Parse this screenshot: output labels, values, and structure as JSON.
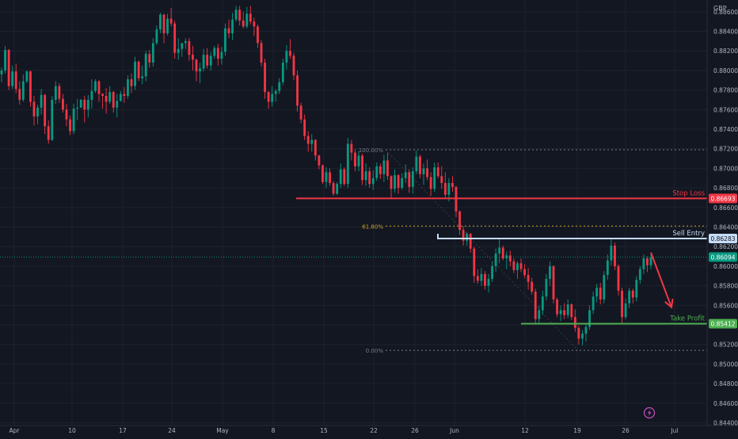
{
  "chart_data": {
    "type": "candlestick",
    "currency": "GBP",
    "price_range": [
      0.8438,
      0.8872
    ],
    "y_ticks": [
      "0.88600",
      "0.88400",
      "0.88200",
      "0.88000",
      "0.87800",
      "0.87600",
      "0.87400",
      "0.87200",
      "0.87000",
      "0.86800",
      "0.86600",
      "0.86400",
      "0.86200",
      "0.86000",
      "0.85800",
      "0.85600",
      "0.85400",
      "0.85200",
      "0.85000",
      "0.84800",
      "0.84600",
      "0.84400"
    ],
    "x_ticks": [
      "Apr",
      "10",
      "17",
      "24",
      "May",
      "8",
      "15",
      "22",
      "26",
      "Jun",
      "12",
      "19",
      "26",
      "Jul"
    ],
    "fib": {
      "levels": [
        {
          "label": "100.00%",
          "price": 0.8719
        },
        {
          "label": "61.80%",
          "price": 0.8641
        },
        {
          "label": "0.00%",
          "price": 0.8514
        }
      ],
      "label_color": "#c9a227",
      "gray_label_color": "#787b86"
    },
    "annotations": [
      {
        "label": "Stop Loss",
        "price": 0.86693,
        "price_label": "0.86693",
        "color": "#f23645",
        "badge_text_color": "#ffffff"
      },
      {
        "label": "Sell Entry",
        "price": 0.86283,
        "price_label": "0.86283",
        "color": "#c6dcf6",
        "badge_text_color": "#131722"
      },
      {
        "label": "Take Profit",
        "price": 0.85412,
        "price_label": "0.85412",
        "color": "#4caf50",
        "badge_text_color": "#ffffff"
      }
    ],
    "current_price": {
      "price": 0.86094,
      "label": "0.86094",
      "color": "#089981"
    },
    "forecast_arrow": {
      "from_price": 0.8614,
      "to_price": 0.8558,
      "color": "#f23645"
    },
    "candle_colors": {
      "up": "#089981",
      "down": "#f23645"
    },
    "ohlc": [
      [
        0.8796,
        0.8803,
        0.8788,
        0.88
      ],
      [
        0.88,
        0.8825,
        0.8797,
        0.8821
      ],
      [
        0.8821,
        0.8822,
        0.878,
        0.8784
      ],
      [
        0.8784,
        0.8805,
        0.8781,
        0.8799
      ],
      [
        0.8799,
        0.8807,
        0.8777,
        0.8781
      ],
      [
        0.8781,
        0.8789,
        0.8765,
        0.877
      ],
      [
        0.877,
        0.8796,
        0.8768,
        0.8789
      ],
      [
        0.8789,
        0.88,
        0.8787,
        0.8799
      ],
      [
        0.8799,
        0.88,
        0.8763,
        0.8768
      ],
      [
        0.8768,
        0.8774,
        0.8744,
        0.8753
      ],
      [
        0.8753,
        0.8765,
        0.8745,
        0.8762
      ],
      [
        0.8762,
        0.8781,
        0.8755,
        0.8775
      ],
      [
        0.8775,
        0.8776,
        0.8735,
        0.8743
      ],
      [
        0.8743,
        0.8749,
        0.8725,
        0.8729
      ],
      [
        0.8729,
        0.8774,
        0.8728,
        0.877
      ],
      [
        0.877,
        0.8789,
        0.8766,
        0.8784
      ],
      [
        0.8784,
        0.8787,
        0.8767,
        0.8771
      ],
      [
        0.8771,
        0.8776,
        0.8757,
        0.876
      ],
      [
        0.876,
        0.8766,
        0.8743,
        0.875
      ],
      [
        0.875,
        0.8754,
        0.8734,
        0.8738
      ],
      [
        0.8738,
        0.8766,
        0.8735,
        0.8761
      ],
      [
        0.8761,
        0.8771,
        0.8749,
        0.8762
      ],
      [
        0.8762,
        0.8771,
        0.8762,
        0.877
      ],
      [
        0.877,
        0.8774,
        0.8747,
        0.876
      ],
      [
        0.876,
        0.8775,
        0.8752,
        0.877
      ],
      [
        0.877,
        0.8791,
        0.8761,
        0.8779
      ],
      [
        0.8779,
        0.8791,
        0.8777,
        0.8789
      ],
      [
        0.8789,
        0.879,
        0.8768,
        0.8776
      ],
      [
        0.8776,
        0.8777,
        0.8761,
        0.8774
      ],
      [
        0.8774,
        0.8782,
        0.8756,
        0.8768
      ],
      [
        0.8768,
        0.8784,
        0.8766,
        0.8778
      ],
      [
        0.8778,
        0.8779,
        0.8757,
        0.8762
      ],
      [
        0.8762,
        0.8776,
        0.8752,
        0.8769
      ],
      [
        0.8769,
        0.8779,
        0.8768,
        0.8776
      ],
      [
        0.8776,
        0.8783,
        0.8767,
        0.8774
      ],
      [
        0.8774,
        0.8795,
        0.8771,
        0.8791
      ],
      [
        0.8791,
        0.8797,
        0.8777,
        0.8784
      ],
      [
        0.8784,
        0.8814,
        0.878,
        0.8809
      ],
      [
        0.8809,
        0.881,
        0.8789,
        0.8792
      ],
      [
        0.8792,
        0.8805,
        0.8786,
        0.8794
      ],
      [
        0.8794,
        0.882,
        0.8789,
        0.8817
      ],
      [
        0.8817,
        0.8821,
        0.8803,
        0.8808
      ],
      [
        0.8808,
        0.8833,
        0.8804,
        0.8828
      ],
      [
        0.8828,
        0.8846,
        0.8826,
        0.8842
      ],
      [
        0.8842,
        0.8859,
        0.8838,
        0.8857
      ],
      [
        0.8857,
        0.8858,
        0.8828,
        0.8838
      ],
      [
        0.8838,
        0.8858,
        0.8836,
        0.8853
      ],
      [
        0.8853,
        0.8864,
        0.8845,
        0.8848
      ],
      [
        0.8848,
        0.8851,
        0.8812,
        0.8818
      ],
      [
        0.8818,
        0.8833,
        0.8811,
        0.8822
      ],
      [
        0.8822,
        0.8828,
        0.8814,
        0.8828
      ],
      [
        0.8828,
        0.8833,
        0.8822,
        0.883
      ],
      [
        0.883,
        0.8833,
        0.881,
        0.8816
      ],
      [
        0.8816,
        0.8825,
        0.88,
        0.8811
      ],
      [
        0.8811,
        0.8812,
        0.8789,
        0.8799
      ],
      [
        0.8799,
        0.8808,
        0.8787,
        0.8802
      ],
      [
        0.8802,
        0.8822,
        0.8799,
        0.8816
      ],
      [
        0.8816,
        0.8823,
        0.8802,
        0.8805
      ],
      [
        0.8805,
        0.8819,
        0.88,
        0.8815
      ],
      [
        0.8815,
        0.8825,
        0.8812,
        0.8823
      ],
      [
        0.8823,
        0.8827,
        0.8805,
        0.8812
      ],
      [
        0.8812,
        0.8824,
        0.8806,
        0.8819
      ],
      [
        0.8819,
        0.8848,
        0.8815,
        0.8843
      ],
      [
        0.8843,
        0.8852,
        0.8833,
        0.8838
      ],
      [
        0.8838,
        0.8859,
        0.8831,
        0.8852
      ],
      [
        0.8852,
        0.8866,
        0.885,
        0.8862
      ],
      [
        0.8862,
        0.8866,
        0.8846,
        0.8851
      ],
      [
        0.8851,
        0.886,
        0.8843,
        0.8845
      ],
      [
        0.8845,
        0.8865,
        0.8843,
        0.8858
      ],
      [
        0.8858,
        0.8866,
        0.8847,
        0.885
      ],
      [
        0.885,
        0.8854,
        0.8835,
        0.8845
      ],
      [
        0.8845,
        0.8847,
        0.8823,
        0.8828
      ],
      [
        0.8828,
        0.8831,
        0.8804,
        0.8808
      ],
      [
        0.8808,
        0.8812,
        0.8771,
        0.8778
      ],
      [
        0.8778,
        0.8779,
        0.8761,
        0.8768
      ],
      [
        0.8768,
        0.8784,
        0.8763,
        0.8776
      ],
      [
        0.8776,
        0.8781,
        0.8768,
        0.8779
      ],
      [
        0.8779,
        0.8792,
        0.8776,
        0.8788
      ],
      [
        0.8788,
        0.8812,
        0.8785,
        0.8808
      ],
      [
        0.8808,
        0.8826,
        0.8801,
        0.882
      ],
      [
        0.882,
        0.8832,
        0.8812,
        0.8815
      ],
      [
        0.8815,
        0.8818,
        0.879,
        0.8795
      ],
      [
        0.8795,
        0.88,
        0.8758,
        0.8764
      ],
      [
        0.8764,
        0.8767,
        0.8746,
        0.875
      ],
      [
        0.875,
        0.8755,
        0.8729,
        0.8733
      ],
      [
        0.8733,
        0.8738,
        0.8717,
        0.8725
      ],
      [
        0.8725,
        0.8735,
        0.8717,
        0.8729
      ],
      [
        0.8729,
        0.873,
        0.8708,
        0.8713
      ],
      [
        0.8713,
        0.8714,
        0.8699,
        0.8703
      ],
      [
        0.8703,
        0.8704,
        0.8684,
        0.8686
      ],
      [
        0.8686,
        0.8701,
        0.868,
        0.8696
      ],
      [
        0.8696,
        0.87,
        0.8682,
        0.8685
      ],
      [
        0.8685,
        0.8687,
        0.8672,
        0.8674
      ],
      [
        0.8674,
        0.8686,
        0.8673,
        0.8684
      ],
      [
        0.8684,
        0.8705,
        0.868,
        0.8699
      ],
      [
        0.8699,
        0.8701,
        0.8682,
        0.8684
      ],
      [
        0.8684,
        0.8731,
        0.868,
        0.8725
      ],
      [
        0.8725,
        0.8729,
        0.8708,
        0.8716
      ],
      [
        0.8716,
        0.872,
        0.8697,
        0.8702
      ],
      [
        0.8702,
        0.8718,
        0.8697,
        0.8713
      ],
      [
        0.8713,
        0.8715,
        0.8683,
        0.8688
      ],
      [
        0.8688,
        0.8705,
        0.8682,
        0.8697
      ],
      [
        0.8697,
        0.8701,
        0.868,
        0.8684
      ],
      [
        0.8684,
        0.8698,
        0.8678,
        0.869
      ],
      [
        0.869,
        0.8706,
        0.8687,
        0.8702
      ],
      [
        0.8702,
        0.8705,
        0.8689,
        0.8694
      ],
      [
        0.8694,
        0.8714,
        0.8686,
        0.8708
      ],
      [
        0.8708,
        0.8716,
        0.8688,
        0.8692
      ],
      [
        0.8692,
        0.8693,
        0.867,
        0.8679
      ],
      [
        0.8679,
        0.8699,
        0.8675,
        0.8693
      ],
      [
        0.8693,
        0.8694,
        0.8674,
        0.868
      ],
      [
        0.868,
        0.8695,
        0.8678,
        0.869
      ],
      [
        0.869,
        0.8704,
        0.8685,
        0.8696
      ],
      [
        0.8696,
        0.8699,
        0.8675,
        0.8681
      ],
      [
        0.8681,
        0.8701,
        0.8674,
        0.8697
      ],
      [
        0.8697,
        0.8718,
        0.8694,
        0.8712
      ],
      [
        0.8712,
        0.8714,
        0.869,
        0.8694
      ],
      [
        0.8694,
        0.8705,
        0.8683,
        0.87
      ],
      [
        0.87,
        0.8709,
        0.8688,
        0.8691
      ],
      [
        0.8691,
        0.8696,
        0.8672,
        0.8679
      ],
      [
        0.8679,
        0.8706,
        0.8676,
        0.8701
      ],
      [
        0.8701,
        0.8706,
        0.869,
        0.8692
      ],
      [
        0.8692,
        0.8702,
        0.8679,
        0.8685
      ],
      [
        0.8685,
        0.8696,
        0.867,
        0.8673
      ],
      [
        0.8673,
        0.869,
        0.8666,
        0.8685
      ],
      [
        0.8685,
        0.8692,
        0.8676,
        0.8681
      ],
      [
        0.8681,
        0.8682,
        0.865,
        0.8656
      ],
      [
        0.8656,
        0.8657,
        0.8632,
        0.8637
      ],
      [
        0.8637,
        0.8641,
        0.8621,
        0.8626
      ],
      [
        0.8626,
        0.8635,
        0.8621,
        0.8633
      ],
      [
        0.8633,
        0.8634,
        0.8614,
        0.8618
      ],
      [
        0.8618,
        0.862,
        0.8583,
        0.859
      ],
      [
        0.859,
        0.8597,
        0.8582,
        0.8585
      ],
      [
        0.8585,
        0.8598,
        0.858,
        0.8592
      ],
      [
        0.8592,
        0.8595,
        0.8576,
        0.858
      ],
      [
        0.858,
        0.8592,
        0.8573,
        0.8587
      ],
      [
        0.8587,
        0.8605,
        0.8584,
        0.86
      ],
      [
        0.86,
        0.8618,
        0.8594,
        0.8613
      ],
      [
        0.8613,
        0.8629,
        0.8603,
        0.8619
      ],
      [
        0.8619,
        0.8621,
        0.8606,
        0.8608
      ],
      [
        0.8608,
        0.8615,
        0.8597,
        0.8611
      ],
      [
        0.8611,
        0.8616,
        0.86,
        0.8605
      ],
      [
        0.8605,
        0.8608,
        0.8593,
        0.8596
      ],
      [
        0.8596,
        0.8605,
        0.8587,
        0.8603
      ],
      [
        0.8603,
        0.8608,
        0.8594,
        0.8597
      ],
      [
        0.8597,
        0.8602,
        0.8588,
        0.8591
      ],
      [
        0.8591,
        0.8598,
        0.8576,
        0.8584
      ],
      [
        0.8584,
        0.8588,
        0.8571,
        0.8574
      ],
      [
        0.8574,
        0.8577,
        0.8541,
        0.8546
      ],
      [
        0.8546,
        0.856,
        0.8542,
        0.8555
      ],
      [
        0.8555,
        0.8575,
        0.855,
        0.8569
      ],
      [
        0.8569,
        0.8592,
        0.8565,
        0.8587
      ],
      [
        0.8587,
        0.8605,
        0.858,
        0.86
      ],
      [
        0.86,
        0.8601,
        0.8562,
        0.8566
      ],
      [
        0.8566,
        0.8568,
        0.8548,
        0.8551
      ],
      [
        0.8551,
        0.856,
        0.8544,
        0.8555
      ],
      [
        0.8555,
        0.8562,
        0.8546,
        0.855
      ],
      [
        0.855,
        0.8566,
        0.8547,
        0.8561
      ],
      [
        0.8561,
        0.8562,
        0.8545,
        0.8548
      ],
      [
        0.8548,
        0.8556,
        0.8533,
        0.8537
      ],
      [
        0.8537,
        0.8539,
        0.852,
        0.8526
      ],
      [
        0.8526,
        0.8535,
        0.8519,
        0.8531
      ],
      [
        0.8531,
        0.8541,
        0.8523,
        0.8538
      ],
      [
        0.8538,
        0.856,
        0.8535,
        0.8555
      ],
      [
        0.8555,
        0.8574,
        0.8551,
        0.8569
      ],
      [
        0.8569,
        0.8582,
        0.8563,
        0.8578
      ],
      [
        0.8578,
        0.8583,
        0.8561,
        0.8566
      ],
      [
        0.8566,
        0.8595,
        0.8562,
        0.8591
      ],
      [
        0.8591,
        0.8612,
        0.8586,
        0.8606
      ],
      [
        0.8606,
        0.8628,
        0.8601,
        0.8621
      ],
      [
        0.8621,
        0.8624,
        0.8596,
        0.86
      ],
      [
        0.86,
        0.8602,
        0.857,
        0.8575
      ],
      [
        0.8575,
        0.8578,
        0.8541,
        0.8548
      ],
      [
        0.8548,
        0.8567,
        0.8546,
        0.8562
      ],
      [
        0.8562,
        0.8578,
        0.8557,
        0.8575
      ],
      [
        0.8575,
        0.8577,
        0.8562,
        0.8568
      ],
      [
        0.8568,
        0.859,
        0.8564,
        0.8586
      ],
      [
        0.8586,
        0.86,
        0.8582,
        0.8597
      ],
      [
        0.8597,
        0.8612,
        0.8592,
        0.8608
      ],
      [
        0.8608,
        0.861,
        0.8594,
        0.8601
      ],
      [
        0.8601,
        0.8612,
        0.8597,
        0.8609
      ]
    ]
  },
  "colors": {
    "background": "#131722",
    "grid": "#1e222d",
    "axis_text": "#b2b5be",
    "dark_border": "#2a2e39"
  },
  "watermark_icon": "lightning-bolt-icon"
}
